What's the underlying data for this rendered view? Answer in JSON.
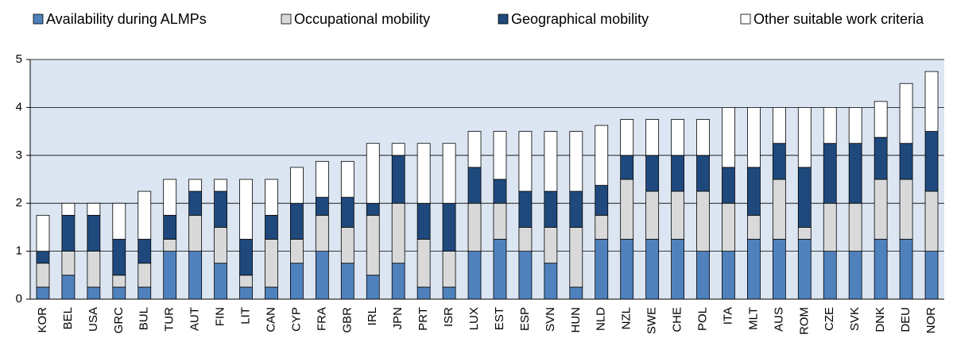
{
  "chart_data": {
    "type": "stacked_bar",
    "categories": [
      "KOR",
      "BEL",
      "USA",
      "GRC",
      "BUL",
      "TUR",
      "AUT",
      "FIN",
      "LIT",
      "CAN",
      "CYP",
      "FRA",
      "GBR",
      "IRL",
      "JPN",
      "PRT",
      "ISR",
      "LUX",
      "EST",
      "ESP",
      "SVN",
      "HUN",
      "NLD",
      "NZL",
      "SWE",
      "CHE",
      "POL",
      "ITA",
      "MLT",
      "AUS",
      "ROM",
      "CZE",
      "SVK",
      "DNK",
      "DEU",
      "NOR"
    ],
    "series": [
      {
        "name": "Availability during ALMPs",
        "color": "#4f81bd",
        "values": [
          0.25,
          0.5,
          0.25,
          0.25,
          0.25,
          1,
          1,
          0.75,
          0.25,
          0.25,
          0.75,
          1,
          0.75,
          0.5,
          0.75,
          0.25,
          0.25,
          1,
          1.25,
          1,
          0.75,
          0.25,
          1.25,
          1.25,
          1.25,
          1.25,
          1,
          1,
          1.25,
          1.25,
          1.25,
          1,
          1,
          1.25,
          1.25,
          1
        ]
      },
      {
        "name": "Occupational mobility",
        "color": "#d9d9d9",
        "values": [
          0.5,
          0.5,
          0.75,
          0.25,
          0.5,
          0.25,
          0.75,
          0.75,
          0.25,
          1,
          0.5,
          0.75,
          0.75,
          1.25,
          1.25,
          1,
          0.75,
          1,
          0.75,
          0.5,
          0.75,
          1.25,
          0.5,
          1.25,
          1,
          1,
          1.25,
          1,
          0.5,
          1.25,
          0.25,
          1,
          1,
          1.25,
          1.25,
          1.25
        ]
      },
      {
        "name": "Geographical mobility",
        "color": "#1f497d",
        "values": [
          0.25,
          0.75,
          0.75,
          0.75,
          0.5,
          0.5,
          0.5,
          0.75,
          0.75,
          0.5,
          0.75,
          0.375,
          0.625,
          0.25,
          1,
          0.75,
          1,
          0.75,
          0.5,
          0.75,
          0.75,
          0.75,
          0.625,
          0.5,
          0.75,
          0.75,
          0.75,
          0.75,
          1,
          0.75,
          1.25,
          1.25,
          1.25,
          0.875,
          0.75,
          1.25
        ]
      },
      {
        "name": "Other suitable work criteria",
        "color": "#ffffff",
        "values": [
          0.75,
          0.25,
          0.25,
          0.75,
          1,
          0.75,
          0.25,
          0.25,
          1.25,
          0.75,
          0.75,
          0.75,
          0.75,
          1.25,
          0.25,
          1.25,
          1.25,
          0.75,
          1,
          1.25,
          1.25,
          1.25,
          1.25,
          0.75,
          0.75,
          0.75,
          0.75,
          1.25,
          1.25,
          0.75,
          1.25,
          0.75,
          0.75,
          0.75,
          1.25,
          1.25
        ]
      }
    ],
    "ylim": [
      0,
      5
    ],
    "yticks": [
      0,
      1,
      2,
      3,
      4,
      5
    ],
    "grid": true
  }
}
